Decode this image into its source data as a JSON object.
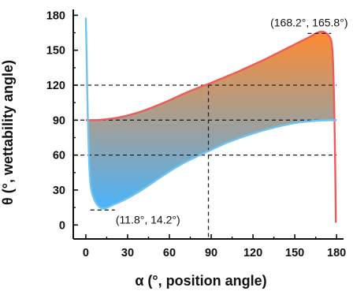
{
  "chart_data": {
    "type": "area",
    "xlabel": "α (°, position angle)",
    "ylabel": "θ (°, wettability angle)",
    "xlim": [
      -9,
      185
    ],
    "ylim": [
      -12,
      185
    ],
    "xticks": [
      0,
      30,
      60,
      90,
      120,
      150,
      180
    ],
    "yticks": [
      0,
      30,
      60,
      90,
      120,
      150,
      180
    ],
    "grid": false,
    "series": [
      {
        "role": "upper-boundary",
        "color": "#ef5a5a",
        "x": [
          0,
          10,
          20,
          30,
          40,
          50,
          60,
          70,
          80,
          90,
          100,
          110,
          120,
          130,
          140,
          150,
          160,
          168.2,
          174,
          177,
          178.5,
          179.5
        ],
        "y": [
          90,
          90.2,
          91.5,
          94,
          97.5,
          102,
          107,
          112.5,
          117.5,
          122,
          127,
          132,
          137.5,
          143,
          149,
          155,
          161,
          165.8,
          163,
          150,
          90,
          2
        ]
      },
      {
        "role": "lower-boundary",
        "color": "#6ec3f0",
        "x": [
          0,
          0.5,
          1.5,
          3,
          6,
          11.8,
          20,
          30,
          40,
          50,
          60,
          70,
          80,
          90,
          100,
          110,
          120,
          130,
          140,
          150,
          160,
          170,
          180
        ],
        "y": [
          178,
          150,
          90,
          40,
          22,
          14.2,
          17.5,
          23,
          30,
          38,
          46,
          53,
          59,
          64.5,
          70,
          74.5,
          78.5,
          82,
          85,
          87.5,
          89,
          89.8,
          90
        ]
      }
    ],
    "fill_gradient": {
      "top_color": "#ff8a30",
      "bottom_color": "#4ab4fa"
    },
    "reference_lines": {
      "horizontal": [
        60,
        90,
        120
      ],
      "vertical": [
        88
      ]
    },
    "annotations": [
      {
        "text": "(168.2°, 165.8°)",
        "x": 168.2,
        "y": 165.8
      },
      {
        "text": "(11.8°, 14.2°)",
        "x": 11.8,
        "y": 14.2
      }
    ]
  }
}
